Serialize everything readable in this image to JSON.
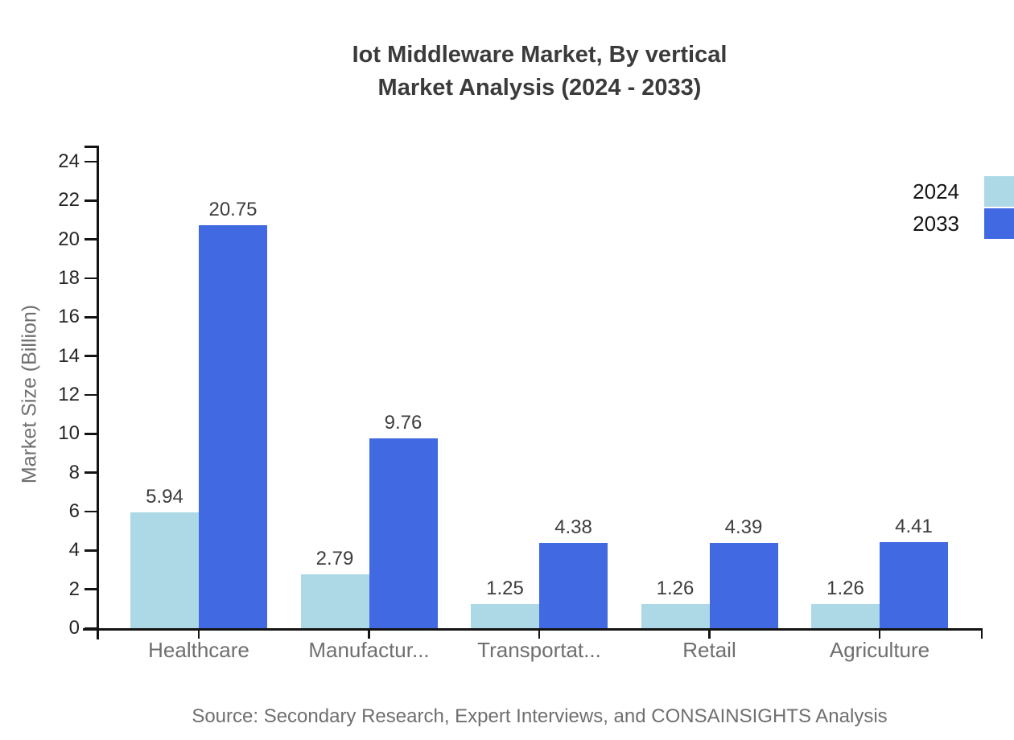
{
  "title": {
    "line1": "Iot Middleware Market, By vertical",
    "line2": "Market Analysis (2024 - 2033)"
  },
  "source": "Source: Secondary Research, Expert Interviews, and CONSAINSIGHTS Analysis",
  "chart_data": {
    "type": "bar",
    "title": "Iot Middleware Market, By vertical Market Analysis (2024 - 2033)",
    "categories": [
      "Healthcare",
      "Manufactur...",
      "Transportat...",
      "Retail",
      "Agriculture"
    ],
    "series": [
      {
        "name": "2024",
        "color": "#ADD8E6",
        "values": [
          5.94,
          2.79,
          1.25,
          1.26,
          1.26
        ]
      },
      {
        "name": "2033",
        "color": "#4169E1",
        "values": [
          20.75,
          9.76,
          4.38,
          4.39,
          4.41
        ]
      }
    ],
    "xlabel": "",
    "ylabel": "Market Size (Billion)",
    "ylim": [
      0,
      24
    ],
    "ytick_step": 2,
    "grid": false,
    "legend_position": "top-right",
    "value_labels": true,
    "axis_color": "#141414"
  }
}
